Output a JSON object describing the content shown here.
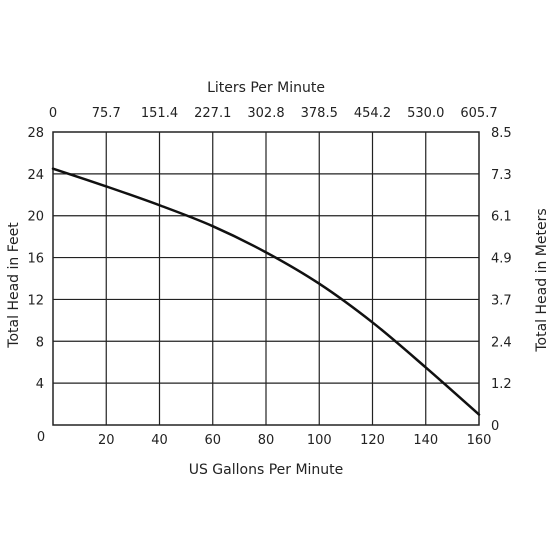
{
  "chart_data": {
    "type": "line",
    "title": "",
    "xlabel": "US Gallons Per Minute",
    "ylabel": "Total Head in Feet",
    "x2label": "Liters Per Minute",
    "y2label": "Total Head in Meters",
    "xlim": [
      0,
      160
    ],
    "ylim": [
      0,
      28
    ],
    "x_ticks": [
      "0",
      "20",
      "40",
      "60",
      "80",
      "100",
      "120",
      "140",
      "160"
    ],
    "y_ticks": [
      "0",
      "4",
      "8",
      "12",
      "16",
      "20",
      "24",
      "28"
    ],
    "x2_ticks": [
      "0",
      "75.7",
      "151.4",
      "227.1",
      "302.8",
      "378.5",
      "454.2",
      "530.0",
      "605.7"
    ],
    "y2_ticks": [
      "0",
      "1.2",
      "2.4",
      "3.7",
      "4.9",
      "6.1",
      "7.3",
      "8.5"
    ],
    "grid": true,
    "legend": "none",
    "series": [
      {
        "x": [
          0,
          20,
          40,
          60,
          80,
          100,
          120,
          140,
          160
        ],
        "y": [
          24.5,
          22.8,
          21.0,
          19.0,
          16.5,
          13.5,
          9.8,
          5.5,
          1.0
        ]
      }
    ]
  },
  "colors": {
    "line": "#111111",
    "grid": "#222222",
    "text": "#222222"
  }
}
